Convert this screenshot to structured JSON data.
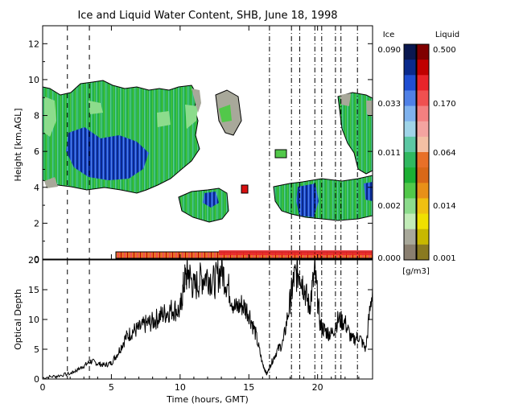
{
  "chart_data": [
    {
      "type": "heatmap",
      "title": "Ice and Liquid Water Content, SHB, June 18, 1998",
      "ylabel": "Height [km,AGL]",
      "ylim": [
        0,
        13
      ],
      "y_ticks": [
        "0",
        "2",
        "4",
        "6",
        "8",
        "10",
        "12"
      ],
      "xlim": [
        0,
        24
      ],
      "cloud_layers": [
        {
          "name": "ice cloud upper layer",
          "x": [
            0,
            11.2
          ],
          "y": [
            3.8,
            9.3
          ],
          "phase": "Ice"
        },
        {
          "name": "ice cloud mid layer",
          "x": [
            10,
            13.5
          ],
          "y": [
            2.3,
            3.8
          ],
          "phase": "Ice"
        },
        {
          "name": "ice cloud late layer",
          "x": [
            17.5,
            24
          ],
          "y": [
            2.3,
            4.3
          ],
          "phase": "Ice"
        },
        {
          "name": "ice cloud late high",
          "x": [
            21.5,
            24
          ],
          "y": [
            4.8,
            9.0
          ],
          "phase": "Ice"
        },
        {
          "name": "liquid patch",
          "x": [
            14.5,
            15.0
          ],
          "y": [
            3.5,
            4.2
          ],
          "phase": "Liquid"
        },
        {
          "name": "liquid low layer",
          "x": [
            5.4,
            24
          ],
          "y": [
            0,
            0.4
          ],
          "phase": "Liquid"
        }
      ],
      "vertical_markers": [
        1.8,
        3.4,
        16.5,
        18.1,
        18.7,
        19.8,
        20.3,
        21.3,
        21.7,
        22.9
      ]
    },
    {
      "type": "line",
      "xlabel": "Time (hours, GMT)",
      "ylabel": "Optical Depth",
      "ylim": [
        0,
        20
      ],
      "xlim": [
        0,
        24
      ],
      "x_ticks": [
        "0",
        "5",
        "10",
        "15",
        "20"
      ],
      "y_ticks": [
        "0",
        "5",
        "10",
        "15",
        "20"
      ],
      "x": [
        0,
        1,
        2,
        2.5,
        3,
        3.5,
        4,
        4.5,
        5,
        5.5,
        6,
        6.5,
        7,
        7.5,
        8,
        8.5,
        9,
        9.5,
        10,
        10.3,
        10.6,
        11,
        11.5,
        12,
        12.5,
        13,
        13.5,
        14,
        14.5,
        15,
        15.5,
        16,
        16.3,
        16.6,
        17,
        17.5,
        18,
        18.3,
        18.7,
        19,
        19.4,
        19.8,
        20.2,
        20.6,
        21,
        21.5,
        22,
        22.5,
        23,
        23.5,
        24
      ],
      "values": [
        0.2,
        0.5,
        0.9,
        1.5,
        2.2,
        3.0,
        2.6,
        2.3,
        2.7,
        4.5,
        6.8,
        8.0,
        8.4,
        9.2,
        9.6,
        10.5,
        11.2,
        11.8,
        11.4,
        16.5,
        18.0,
        15.2,
        16.8,
        17.5,
        16.2,
        18.5,
        15.5,
        11.8,
        12.5,
        11.2,
        7.5,
        2.5,
        0.8,
        2.5,
        4.5,
        6.2,
        13.0,
        17.0,
        18.2,
        15.5,
        12.0,
        18.0,
        9.0,
        8.0,
        7.5,
        10.0,
        9.5,
        6.5,
        7.2,
        5.0,
        15.5
      ]
    }
  ],
  "legend": {
    "ice_label": "Ice",
    "liquid_label": "Liquid",
    "units": "[g/m3]",
    "ice_ticks": [
      "0.090",
      "0.033",
      "0.011",
      "0.002",
      "0.000"
    ],
    "liquid_ticks": [
      "0.500",
      "0.170",
      "0.064",
      "0.014",
      "0.001"
    ],
    "ice_colors": [
      "#0a1850",
      "#0a2a8c",
      "#1f4ed2",
      "#4f80e6",
      "#7fb2ee",
      "#9fd4e8",
      "#5cc8a4",
      "#30b860",
      "#1cb034",
      "#52c84a",
      "#8cdc8c",
      "#c2ecb8",
      "#a8a89a",
      "#8a7f70"
    ],
    "liquid_colors": [
      "#800000",
      "#c00000",
      "#e8242a",
      "#f05050",
      "#f48080",
      "#f4a4a0",
      "#f4c0a4",
      "#e87028",
      "#d86818",
      "#e89018",
      "#f0c010",
      "#f0e000",
      "#c8b800",
      "#8a7a20"
    ]
  }
}
